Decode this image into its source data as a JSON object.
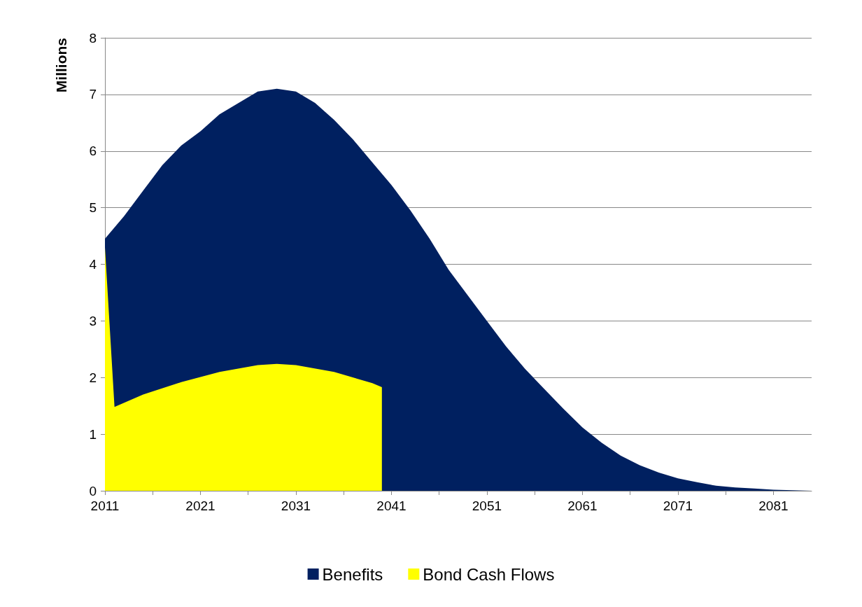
{
  "chart_data": {
    "type": "area",
    "ylabel": "Millions",
    "xlim": [
      2011,
      2085
    ],
    "xticks": [
      2011,
      {
        "value": 2016,
        "label": null
      },
      2021,
      {
        "value": 2026,
        "label": null
      },
      2031,
      {
        "value": 2036,
        "label": null
      },
      2041,
      {
        "value": 2046,
        "label": null
      },
      2051,
      {
        "value": 2056,
        "label": null
      },
      2061,
      {
        "value": 2066,
        "label": null
      },
      2071,
      {
        "value": 2076,
        "label": null
      },
      2081
    ],
    "ylim": [
      0,
      8
    ],
    "yticks": [
      0,
      1,
      2,
      3,
      4,
      5,
      6,
      7,
      8
    ],
    "grid": "y",
    "legend": "bottom",
    "series": [
      {
        "name": "Benefits",
        "color": "#002060",
        "x": [
          2011,
          2013,
          2015,
          2017,
          2019,
          2021,
          2023,
          2025,
          2027,
          2029,
          2031,
          2033,
          2035,
          2037,
          2039,
          2041,
          2043,
          2045,
          2047,
          2049,
          2051,
          2053,
          2055,
          2057,
          2059,
          2061,
          2063,
          2065,
          2067,
          2069,
          2071,
          2073,
          2075,
          2077,
          2079,
          2081,
          2083,
          2085
        ],
        "values": [
          4.45,
          4.85,
          5.3,
          5.75,
          6.1,
          6.35,
          6.65,
          6.85,
          7.05,
          7.1,
          7.05,
          6.85,
          6.55,
          6.2,
          5.8,
          5.4,
          4.95,
          4.45,
          3.9,
          3.45,
          3.0,
          2.55,
          2.15,
          1.8,
          1.45,
          1.12,
          0.85,
          0.62,
          0.45,
          0.32,
          0.22,
          0.15,
          0.09,
          0.06,
          0.04,
          0.02,
          0.01,
          0
        ]
      },
      {
        "name": "Bond Cash Flows",
        "color": "#ffff00",
        "x": [
          2011,
          2012,
          2015,
          2019,
          2023,
          2027,
          2029,
          2031,
          2035,
          2039,
          2040
        ],
        "values": [
          4.3,
          1.48,
          1.7,
          1.92,
          2.1,
          2.22,
          2.24,
          2.22,
          2.1,
          1.9,
          1.83
        ]
      }
    ]
  }
}
